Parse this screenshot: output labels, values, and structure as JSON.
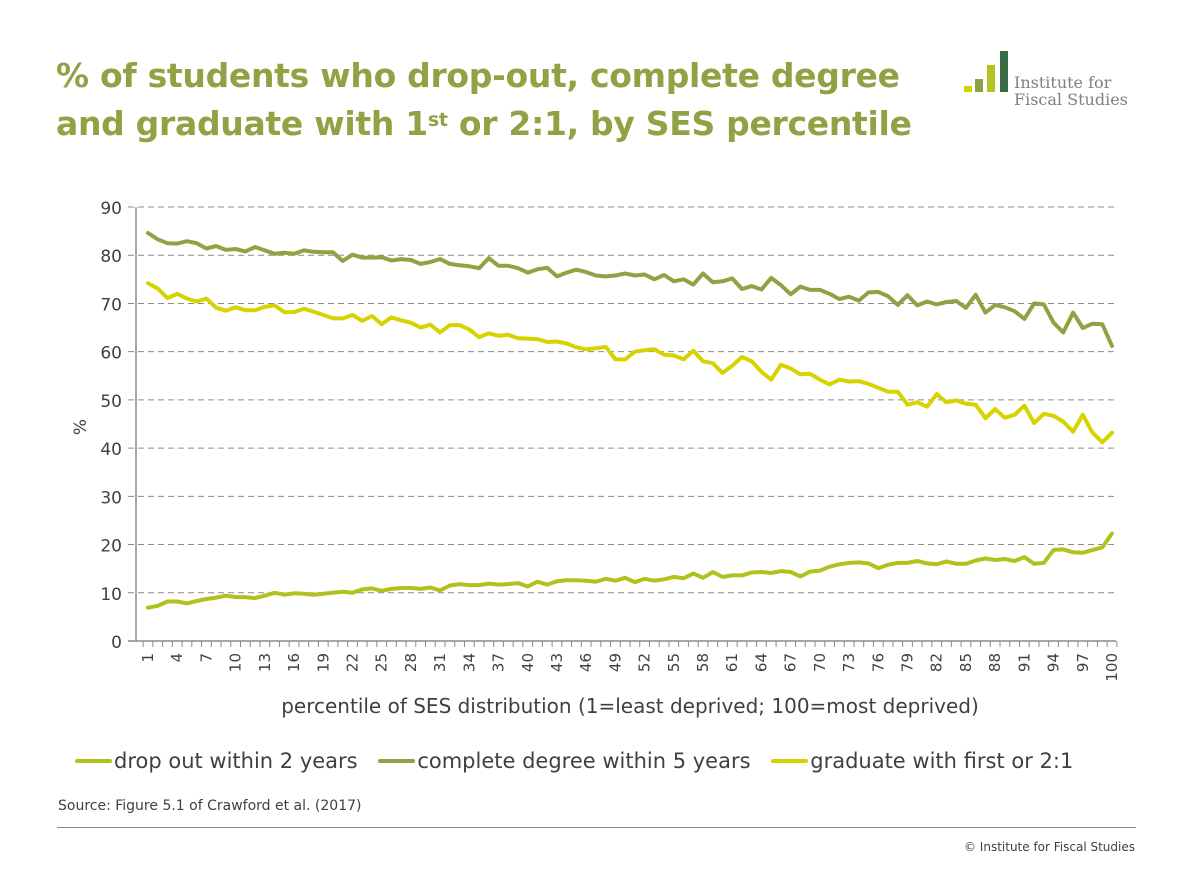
{
  "title": {
    "line1": "% of students who drop-out, complete degree",
    "line2_pre": "and graduate with 1",
    "line2_sup": "st",
    "line2_post": " or 2:1, by SES percentile"
  },
  "logo": {
    "line1": "Institute for",
    "line2": "Fiscal Studies",
    "bar_colors": [
      "#d6d200",
      "#8fa244",
      "#b5c21f",
      "#3a6b47"
    ]
  },
  "colors": {
    "title": "#8fa244",
    "dropout": "#b1c11d",
    "complete": "#8fa244",
    "graduate": "#d6d300",
    "grid": "#8c8c8c"
  },
  "source": "Source: Figure 5.1 of Crawford et al. (2017)",
  "copyright": "© Institute for Fiscal Studies",
  "chart_data": {
    "type": "line",
    "title": "% of students who drop-out, complete degree and graduate with 1st or 2:1, by SES percentile",
    "xlabel": "percentile of SES distribution (1=least deprived; 100=most deprived)",
    "ylabel": "%",
    "ylim": [
      0,
      90
    ],
    "yticks": [
      0,
      10,
      20,
      30,
      40,
      50,
      60,
      70,
      80,
      90
    ],
    "xlim": [
      1,
      100
    ],
    "xtick_labels": [
      "1",
      "4",
      "7",
      "10",
      "13",
      "16",
      "19",
      "22",
      "25",
      "28",
      "31",
      "34",
      "37",
      "40",
      "43",
      "46",
      "49",
      "52",
      "55",
      "58",
      "61",
      "64",
      "67",
      "70",
      "73",
      "76",
      "79",
      "82",
      "85",
      "88",
      "91",
      "94",
      "97",
      "100"
    ],
    "grid": "horizontal dashed",
    "legend_position": "bottom",
    "series": [
      {
        "name": "drop out within 2 years",
        "color": "#b1c11d",
        "values": [
          6.9,
          7.3,
          8.2,
          8.2,
          7.8,
          8.3,
          8.7,
          9.0,
          9.4,
          9.1,
          9.1,
          8.9,
          9.4,
          10.0,
          9.6,
          9.9,
          9.8,
          9.6,
          9.8,
          10.0,
          10.2,
          10.0,
          10.7,
          10.9,
          10.4,
          10.8,
          11.0,
          11.0,
          10.8,
          11.1,
          10.5,
          11.5,
          11.8,
          11.6,
          11.6,
          11.9,
          11.7,
          11.8,
          12.0,
          11.3,
          12.3,
          11.7,
          12.4,
          12.6,
          12.6,
          12.5,
          12.3,
          12.9,
          12.5,
          13.1,
          12.2,
          12.9,
          12.5,
          12.8,
          13.3,
          13.0,
          14.0,
          13.1,
          14.3,
          13.3,
          13.6,
          13.6,
          14.2,
          14.3,
          14.1,
          14.5,
          14.3,
          13.4,
          14.4,
          14.6,
          15.4,
          15.9,
          16.2,
          16.3,
          16.1,
          15.1,
          15.8,
          16.2,
          16.2,
          16.6,
          16.1,
          15.9,
          16.5,
          16.0,
          16.0,
          16.7,
          17.1,
          16.8,
          17.0,
          16.6,
          17.4,
          16.0,
          16.2,
          18.9,
          19.0,
          18.4,
          18.3,
          18.9,
          19.4,
          22.3
        ]
      },
      {
        "name": "complete degree within 5 years",
        "color": "#8fa244",
        "values": [
          84.6,
          83.3,
          82.5,
          82.4,
          82.9,
          82.5,
          81.4,
          81.9,
          81.1,
          81.3,
          80.8,
          81.7,
          81.0,
          80.3,
          80.5,
          80.3,
          81.0,
          80.7,
          80.6,
          80.6,
          78.8,
          80.1,
          79.5,
          79.5,
          79.6,
          78.9,
          79.2,
          79.0,
          78.2,
          78.6,
          79.2,
          78.2,
          77.9,
          77.7,
          77.3,
          79.4,
          77.8,
          77.8,
          77.3,
          76.4,
          77.1,
          77.4,
          75.6,
          76.4,
          77.0,
          76.5,
          75.8,
          75.6,
          75.8,
          76.2,
          75.8,
          76.0,
          75.0,
          75.9,
          74.6,
          75.0,
          73.9,
          76.2,
          74.4,
          74.6,
          75.2,
          73.0,
          73.6,
          72.9,
          75.3,
          73.8,
          71.9,
          73.5,
          72.8,
          72.8,
          72.0,
          70.9,
          71.4,
          70.6,
          72.3,
          72.4,
          71.5,
          69.7,
          71.7,
          69.6,
          70.4,
          69.8,
          70.3,
          70.5,
          69.1,
          71.8,
          68.1,
          69.7,
          69.2,
          68.4,
          66.8,
          70.0,
          69.8,
          66.0,
          64.0,
          68.1,
          64.9,
          65.8,
          65.7,
          61.2
        ]
      },
      {
        "name": "graduate with first or 2:1",
        "color": "#d6d300",
        "values": [
          74.2,
          73.1,
          71.1,
          72.0,
          71.0,
          70.4,
          71.0,
          69.1,
          68.5,
          69.2,
          68.6,
          68.6,
          69.3,
          69.6,
          68.2,
          68.2,
          68.9,
          68.3,
          67.6,
          66.9,
          66.9,
          67.6,
          66.4,
          67.4,
          65.7,
          67.1,
          66.5,
          66.0,
          65.0,
          65.6,
          64.0,
          65.5,
          65.5,
          64.6,
          63.0,
          63.8,
          63.3,
          63.5,
          62.8,
          62.7,
          62.6,
          62.0,
          62.1,
          61.7,
          60.9,
          60.5,
          60.7,
          61.0,
          58.4,
          58.4,
          60.0,
          60.3,
          60.5,
          59.4,
          59.2,
          58.4,
          60.2,
          58.0,
          57.6,
          55.6,
          57.1,
          58.9,
          58.0,
          55.8,
          54.2,
          57.3,
          56.5,
          55.3,
          55.4,
          54.2,
          53.2,
          54.2,
          53.8,
          53.9,
          53.3,
          52.5,
          51.7,
          51.7,
          49.0,
          49.5,
          48.6,
          51.2,
          49.5,
          49.9,
          49.2,
          49.0,
          46.2,
          48.1,
          46.3,
          46.9,
          48.8,
          45.2,
          47.1,
          46.7,
          45.5,
          43.4,
          46.9,
          43.2,
          41.2,
          43.2
        ]
      }
    ]
  }
}
